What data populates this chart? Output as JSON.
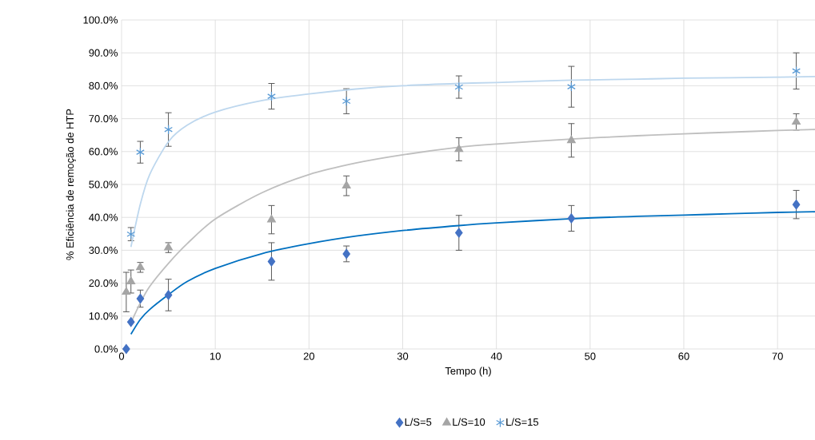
{
  "chart_data": {
    "type": "scatter",
    "xlabel": "Tempo (h)",
    "ylabel": "% Eficiência de remoção de HTP",
    "xlim": [
      0,
      74
    ],
    "xticks": [
      0,
      10,
      20,
      30,
      40,
      50,
      60,
      70
    ],
    "ylim": [
      0,
      100
    ],
    "yticks": [
      {
        "value": 0,
        "label": "0.0%"
      },
      {
        "value": 10,
        "label": "10.0%"
      },
      {
        "value": 20,
        "label": "20.0%"
      },
      {
        "value": 30,
        "label": "30.0%"
      },
      {
        "value": 40,
        "label": "40.0%"
      },
      {
        "value": 50,
        "label": "50.0%"
      },
      {
        "value": 60,
        "label": "60.0%"
      },
      {
        "value": 70,
        "label": "70.0%"
      },
      {
        "value": 80,
        "label": "80.0%"
      },
      {
        "value": 90,
        "label": "90.0%"
      },
      {
        "value": 100,
        "label": "100.0%"
      }
    ],
    "grid": true,
    "legend": "bottom",
    "series": [
      {
        "name": "L/S=5",
        "marker": "diamond",
        "color": "#4472c4",
        "x": [
          0.5,
          1,
          2,
          5,
          16,
          24,
          36,
          48,
          72
        ],
        "values": [
          0,
          8.2,
          15.3,
          16.4,
          26.6,
          28.9,
          35.3,
          39.7,
          43.9
        ],
        "errors": [
          0,
          0,
          2.6,
          4.8,
          5.7,
          2.4,
          5.3,
          3.9,
          4.3
        ]
      },
      {
        "name": "L/S=10",
        "marker": "triangle",
        "color": "#a5a5a5",
        "x": [
          0.5,
          1,
          2,
          5,
          16,
          24,
          36,
          48,
          72
        ],
        "values": [
          17.3,
          20.5,
          24.8,
          30.8,
          39.3,
          49.6,
          60.7,
          63.4,
          69
        ],
        "errors": [
          6,
          3.5,
          1.5,
          1.5,
          4.3,
          3,
          3.5,
          5.1,
          2.5
        ]
      },
      {
        "name": "L/S=15",
        "marker": "cross",
        "color": "#5b9bd5",
        "x": [
          1,
          2,
          5,
          16,
          24,
          36,
          48,
          72
        ],
        "values": [
          34.9,
          59.8,
          66.7,
          76.8,
          75.3,
          79.6,
          79.7,
          84.5
        ],
        "errors": [
          2,
          3.3,
          5.1,
          3.9,
          3.8,
          3.4,
          6.2,
          5.5
        ]
      },
      {
        "type": "line",
        "marker": "none",
        "color": "#0070c0",
        "x": [
          1,
          2,
          3,
          5,
          7,
          10,
          15,
          20,
          25,
          30,
          36,
          40,
          48,
          55,
          60,
          65,
          70,
          74
        ],
        "values": [
          4.5,
          9,
          12,
          16.5,
          20.5,
          24.5,
          29,
          32,
          34.3,
          36,
          37.5,
          38.3,
          39.6,
          40.3,
          40.7,
          41.1,
          41.5,
          41.7
        ]
      },
      {
        "type": "line",
        "marker": "none",
        "color": "#bfbfbf",
        "x": [
          1,
          2,
          3,
          5,
          7,
          10,
          15,
          20,
          25,
          30,
          36,
          40,
          48,
          55,
          60,
          65,
          70,
          74
        ],
        "values": [
          8,
          14,
          19,
          26,
          32,
          39.5,
          47.5,
          53,
          56.5,
          59,
          61.3,
          62.3,
          63.8,
          64.8,
          65.4,
          65.9,
          66.4,
          66.7
        ]
      },
      {
        "type": "line",
        "marker": "none",
        "color": "#bdd7ee",
        "x": [
          1,
          2,
          3,
          5,
          7,
          10,
          15,
          20,
          25,
          30,
          36,
          40,
          48,
          55,
          60,
          70,
          74
        ],
        "values": [
          31,
          44,
          53,
          63,
          68,
          72,
          75.5,
          77.5,
          79,
          80,
          80.7,
          81,
          81.7,
          82,
          82.3,
          82.6,
          82.8
        ]
      }
    ]
  }
}
